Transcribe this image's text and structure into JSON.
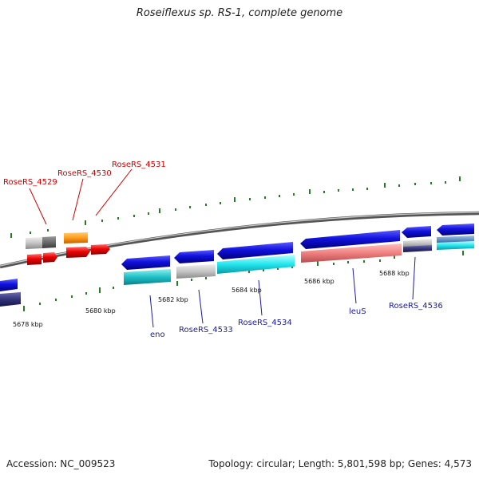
{
  "title": "Roseiflexus sp. RS-1, complete genome",
  "footer": {
    "accession": "Accession: NC_009523",
    "summary": "Topology: circular; Length: 5,801,598 bp; Genes: 4,573"
  },
  "colors": {
    "backbone": "#888888",
    "forward_cds": "#1111dd",
    "reverse_cds": "#ee0000",
    "label_red": "#cc0000",
    "label_blue": "#1a1aa6",
    "tick": "#2a7a2a"
  },
  "scale_labels": [
    "5678 kbp",
    "5680 kbp",
    "5682 kbp",
    "5684 kbp",
    "5686 kbp",
    "5688 kbp"
  ],
  "gene_labels_red": [
    "RoseRS_4529",
    "RoseRS_4530",
    "RoseRS_4531"
  ],
  "gene_labels_blue": [
    "eno",
    "RoseRS_4533",
    "RoseRS_4534",
    "leuS",
    "RoseRS_4536"
  ]
}
